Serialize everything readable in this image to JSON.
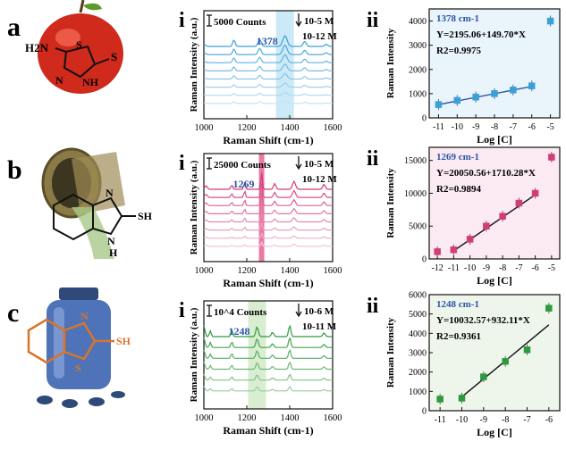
{
  "rows": [
    {
      "letter": "a",
      "spectra_label": "i",
      "plot_label": "ii",
      "counts": "5000 Counts",
      "peak": "1378",
      "conc_top": "10-5 M",
      "conc_bottom": "10-12 M",
      "plot_peak": "1378 cm-1",
      "equation": "Y=2195.06+149.70*X",
      "r2": "R2=0.9975",
      "molecule_labels": [
        "H2N",
        "S",
        "S",
        "N",
        "NH"
      ],
      "colors": {
        "accent": "#3aa0d8",
        "band": "#bfe3f5",
        "panel": "#eaf4fb"
      }
    },
    {
      "letter": "b",
      "spectra_label": "i",
      "plot_label": "ii",
      "counts": "25000 Counts",
      "peak": "1269",
      "conc_top": "10-5 M",
      "conc_bottom": "10-12 M",
      "plot_peak": "1269 cm-1",
      "equation": "Y=20050.56+1710.28*X",
      "r2": "R2=0.9894",
      "molecule_labels": [
        "N",
        "SH",
        "N",
        "H"
      ],
      "colors": {
        "accent": "#d23c78",
        "band": "#e86a9c",
        "panel": "#fbeaf1"
      }
    },
    {
      "letter": "c",
      "spectra_label": "i",
      "plot_label": "ii",
      "counts": "10^4 Counts",
      "peak": "1248",
      "conc_top": "10-6 M",
      "conc_bottom": "10-11 M",
      "plot_peak": "1248 cm-1",
      "equation": "Y=10032.57+932.11*X",
      "r2": "R2=0.9361",
      "molecule_labels": [
        "N",
        "SH",
        "S"
      ],
      "colors": {
        "accent": "#2e9a3e",
        "band": "#cfe8c4",
        "panel": "#eef6ec"
      }
    }
  ],
  "spectra_axis": {
    "xlabel": "Raman Shift (cm-1)",
    "ylabel": "Raman Intensity (a.u.)",
    "xticks": [
      "1000",
      "1200",
      "1400",
      "1600"
    ]
  },
  "plot_axis": {
    "xlabel": "Log [C]",
    "ylabel": "Raman Intensity"
  },
  "chart_data": [
    {
      "type": "scatter",
      "xlabel": "Log [C]",
      "ylabel": "Raman Intensity",
      "xlim": [
        -11.5,
        -4.5
      ],
      "ylim": [
        0,
        4500
      ],
      "xticks": [
        -11,
        -10,
        -9,
        -8,
        -7,
        -6,
        -5
      ],
      "yticks": [
        0,
        1000,
        2000,
        3000,
        4000
      ],
      "x": [
        -11,
        -10,
        -9,
        -8,
        -7,
        -6,
        -5
      ],
      "y": [
        550,
        720,
        860,
        1000,
        1150,
        1320,
        4000
      ],
      "fit": {
        "slope": 149.7,
        "intercept": 2195.06,
        "x_range": [
          -11,
          -6
        ]
      }
    },
    {
      "type": "scatter",
      "xlabel": "Log [C]",
      "ylabel": "Raman Intensity",
      "xlim": [
        -12.5,
        -4.5
      ],
      "ylim": [
        0,
        17000
      ],
      "xticks": [
        -12,
        -11,
        -10,
        -9,
        -8,
        -7,
        -6,
        -5
      ],
      "yticks": [
        0,
        5000,
        10000,
        15000
      ],
      "x": [
        -12,
        -11,
        -10,
        -9,
        -8,
        -7,
        -6,
        -5
      ],
      "y": [
        1100,
        1400,
        3000,
        5000,
        6500,
        8500,
        10000,
        15500
      ],
      "fit": {
        "slope": 1710.28,
        "intercept": 20050.56,
        "x_range": [
          -11,
          -6
        ]
      }
    },
    {
      "type": "scatter",
      "xlabel": "Log [C]",
      "ylabel": "Raman Intensity",
      "xlim": [
        -11.5,
        -5.5
      ],
      "ylim": [
        0,
        6000
      ],
      "xticks": [
        -11,
        -10,
        -9,
        -8,
        -7,
        -6
      ],
      "yticks": [
        0,
        1000,
        2000,
        3000,
        4000,
        5000,
        6000
      ],
      "x": [
        -11,
        -10,
        -9,
        -8,
        -7,
        -6
      ],
      "y": [
        600,
        650,
        1750,
        2550,
        3150,
        5300
      ],
      "fit": {
        "slope": 932.11,
        "intercept": 10032.57,
        "x_range": [
          -10,
          -6
        ]
      }
    }
  ]
}
